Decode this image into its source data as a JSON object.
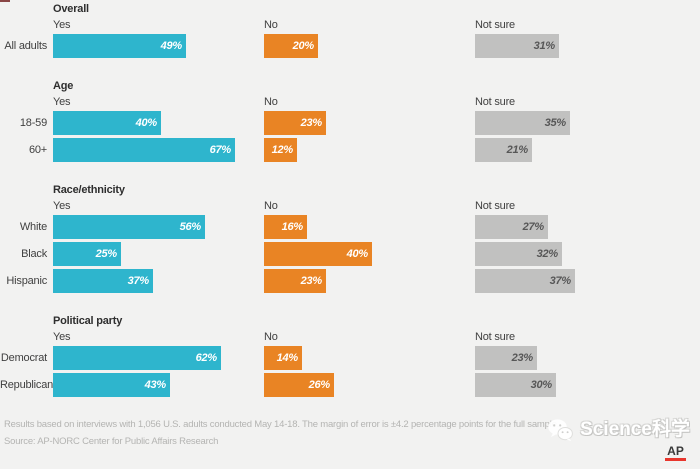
{
  "chart_data": {
    "type": "bar",
    "orientation": "horizontal",
    "unit": "%",
    "value_range": [
      0,
      100
    ],
    "grid": false,
    "columns": [
      {
        "key": "yes",
        "label": "Yes",
        "color": "#2eb5cd",
        "value_text_color": "#ffffff"
      },
      {
        "key": "no",
        "label": "No",
        "color": "#e98424",
        "value_text_color": "#ffffff"
      },
      {
        "key": "not_sure",
        "label": "Not sure",
        "color": "#c1c1c0",
        "value_text_color": "#575757"
      }
    ],
    "sections": [
      {
        "title": "Overall",
        "rows": [
          {
            "label": "All adults",
            "yes": 49,
            "no": 20,
            "not_sure": 31
          }
        ]
      },
      {
        "title": "Age",
        "rows": [
          {
            "label": "18-59",
            "yes": 40,
            "no": 23,
            "not_sure": 35
          },
          {
            "label": "60+",
            "yes": 67,
            "no": 12,
            "not_sure": 21
          }
        ]
      },
      {
        "title": "Race/ethnicity",
        "rows": [
          {
            "label": "White",
            "yes": 56,
            "no": 16,
            "not_sure": 27
          },
          {
            "label": "Black",
            "yes": 25,
            "no": 40,
            "not_sure": 32
          },
          {
            "label": "Hispanic",
            "yes": 37,
            "no": 23,
            "not_sure": 37
          }
        ]
      },
      {
        "title": "Political party",
        "rows": [
          {
            "label": "Democrat",
            "yes": 62,
            "no": 14,
            "not_sure": 23
          },
          {
            "label": "Republican",
            "yes": 43,
            "no": 26,
            "not_sure": 30
          }
        ]
      }
    ]
  },
  "footer": {
    "note": "Results based on interviews with 1,056 U.S. adults conducted May 14-18. The margin of error is ±4.2 percentage points for the full sample.",
    "source": "Source: AP-NORC Center for Public Affairs Research"
  },
  "watermark": {
    "text": "Science科学",
    "ap_label": "AP",
    "ap_bar_color": "#e8362d"
  }
}
